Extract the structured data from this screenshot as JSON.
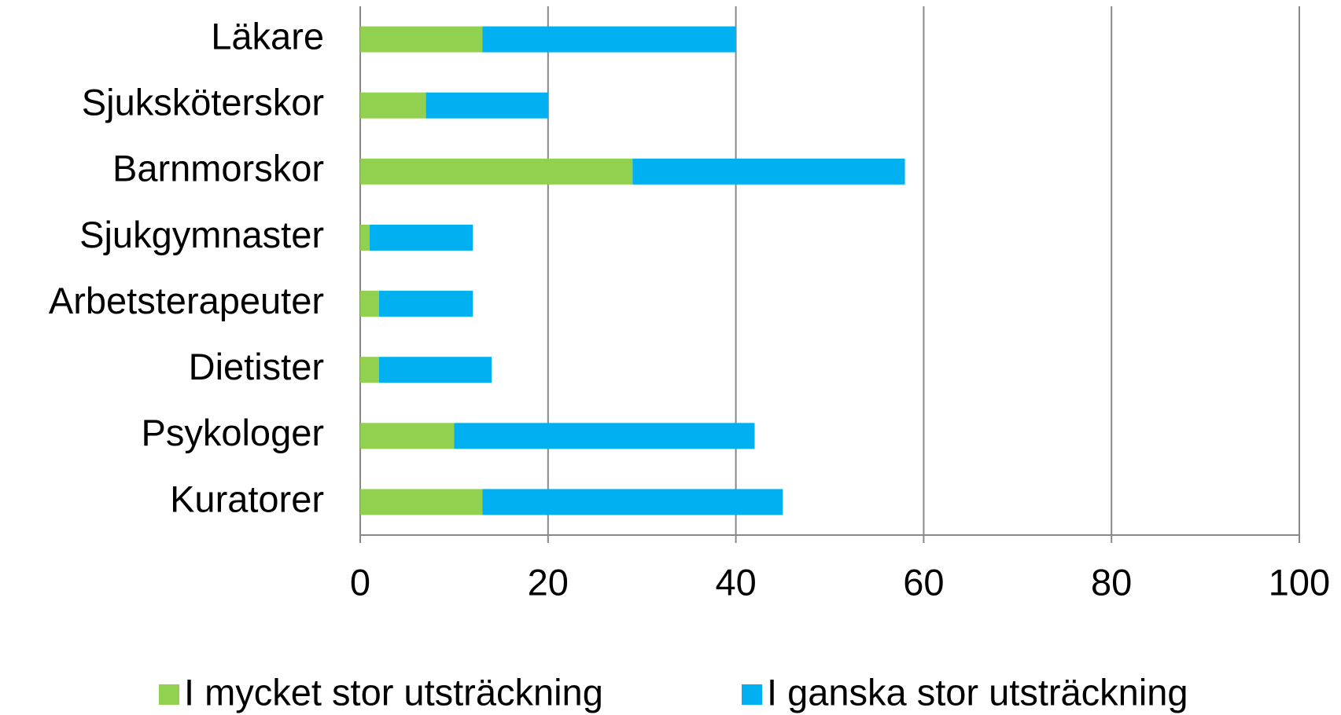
{
  "chart_data": {
    "type": "stacked_bar_horizontal",
    "categories": [
      "Läkare",
      "Sjuksköterskor",
      "Barnmorskor",
      "Sjukgymnaster",
      "Arbetsterapeuter",
      "Dietister",
      "Psykologer",
      "Kuratorer"
    ],
    "series": [
      {
        "name": "I mycket stor utsträckning",
        "color": "#92d050",
        "values": [
          13,
          7,
          29,
          1,
          2,
          2,
          10,
          13
        ]
      },
      {
        "name": "I ganska stor utsträckning",
        "color": "#00b0f0",
        "values": [
          27,
          13,
          29,
          11,
          10,
          12,
          32,
          32
        ]
      }
    ],
    "xlim": [
      0,
      100
    ],
    "xticks": [
      0,
      20,
      40,
      60,
      80,
      100
    ],
    "grid": true,
    "legend": "bottom"
  }
}
